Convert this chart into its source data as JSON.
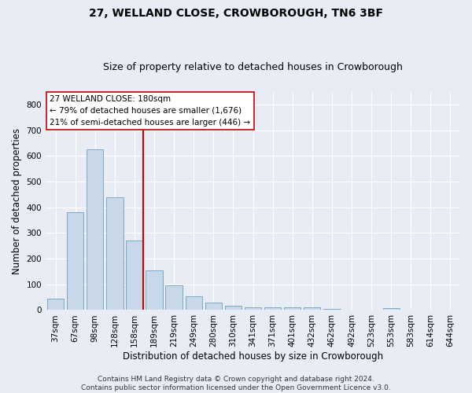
{
  "title_line1": "27, WELLAND CLOSE, CROWBOROUGH, TN6 3BF",
  "title_line2": "Size of property relative to detached houses in Crowborough",
  "xlabel": "Distribution of detached houses by size in Crowborough",
  "ylabel": "Number of detached properties",
  "categories": [
    "37sqm",
    "67sqm",
    "98sqm",
    "128sqm",
    "158sqm",
    "189sqm",
    "219sqm",
    "249sqm",
    "280sqm",
    "310sqm",
    "341sqm",
    "371sqm",
    "401sqm",
    "432sqm",
    "462sqm",
    "492sqm",
    "523sqm",
    "553sqm",
    "583sqm",
    "614sqm",
    "644sqm"
  ],
  "values": [
    45,
    380,
    625,
    440,
    270,
    155,
    95,
    52,
    28,
    18,
    12,
    12,
    12,
    10,
    5,
    0,
    0,
    8,
    0,
    0,
    0
  ],
  "bar_color": "#c8d8e8",
  "bar_edge_color": "#7aaac8",
  "vline_color": "#cc0000",
  "annotation_line1": "27 WELLAND CLOSE: 180sqm",
  "annotation_line2": "← 79% of detached houses are smaller (1,676)",
  "annotation_line3": "21% of semi-detached houses are larger (446) →",
  "annotation_box_facecolor": "white",
  "annotation_box_edgecolor": "#cc0000",
  "ylim": [
    0,
    850
  ],
  "yticks": [
    0,
    100,
    200,
    300,
    400,
    500,
    600,
    700,
    800
  ],
  "footer_line1": "Contains HM Land Registry data © Crown copyright and database right 2024.",
  "footer_line2": "Contains public sector information licensed under the Open Government Licence v3.0.",
  "bg_color": "#e8edf5",
  "plot_bg_color": "#e8edf5",
  "grid_color": "white",
  "title1_fontsize": 10,
  "title2_fontsize": 9,
  "xlabel_fontsize": 8.5,
  "ylabel_fontsize": 8.5,
  "tick_fontsize": 7.5,
  "annotation_fontsize": 7.5,
  "footer_fontsize": 6.5
}
